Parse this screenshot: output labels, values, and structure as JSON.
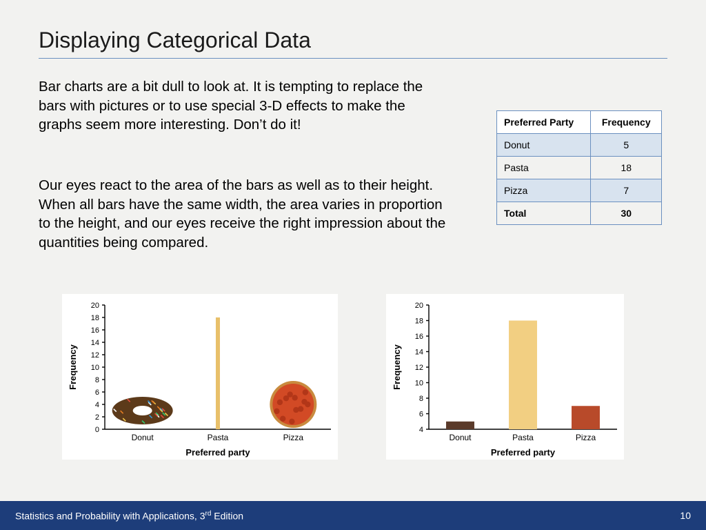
{
  "title": "Displaying Categorical Data",
  "para1": "Bar charts are a bit dull to look at. It is tempting to replace the bars with pictures or to use special 3-D effects to make the graphs seem more interesting. Don’t do it!",
  "para2": "Our eyes react to the area of the bars as well as to their height. When all bars have the same width, the area varies in proportion to the height, and our eyes receive the right impression about the quantities being compared.",
  "footer": {
    "book": "Statistics and Probability with Applications, 3",
    "ed_sup": "rd",
    "ed_suffix": " Edition",
    "page": "10"
  },
  "table": {
    "columns": [
      "Preferred Party",
      "Frequency"
    ],
    "rows": [
      {
        "label": "Donut",
        "value": 5,
        "shaded": true
      },
      {
        "label": "Pasta",
        "value": 18,
        "shaded": false
      },
      {
        "label": "Pizza",
        "value": 7,
        "shaded": true
      }
    ],
    "total_label": "Total",
    "total_value": 30
  },
  "chart_picto": {
    "type": "bar-pictograph",
    "xlabel": "Preferred party",
    "ylabel": "Frequency",
    "categories": [
      "Donut",
      "Pasta",
      "Pizza"
    ],
    "values": [
      5,
      18,
      7
    ],
    "ylim": [
      0,
      20
    ],
    "ytick_step": 2,
    "background_color": "#ffffff",
    "pasta_bar_color": "#e8c06a",
    "donut_color": "#5c3a1a",
    "pizza_crust_color": "#c98b3f",
    "pizza_topping_color": "#b23618",
    "axis_fontsize": 11,
    "label_fontsize": 13
  },
  "chart_bar": {
    "type": "bar",
    "xlabel": "Preferred party",
    "ylabel": "Frequency",
    "categories": [
      "Donut",
      "Pasta",
      "Pizza"
    ],
    "values": [
      5,
      18,
      7
    ],
    "bar_colors": [
      "#5a3a2a",
      "#f2cf82",
      "#b84a2a"
    ],
    "ylim": [
      4,
      20
    ],
    "ytick_step": 2,
    "background_color": "#ffffff",
    "bar_width": 0.45,
    "axis_fontsize": 11,
    "label_fontsize": 13
  }
}
